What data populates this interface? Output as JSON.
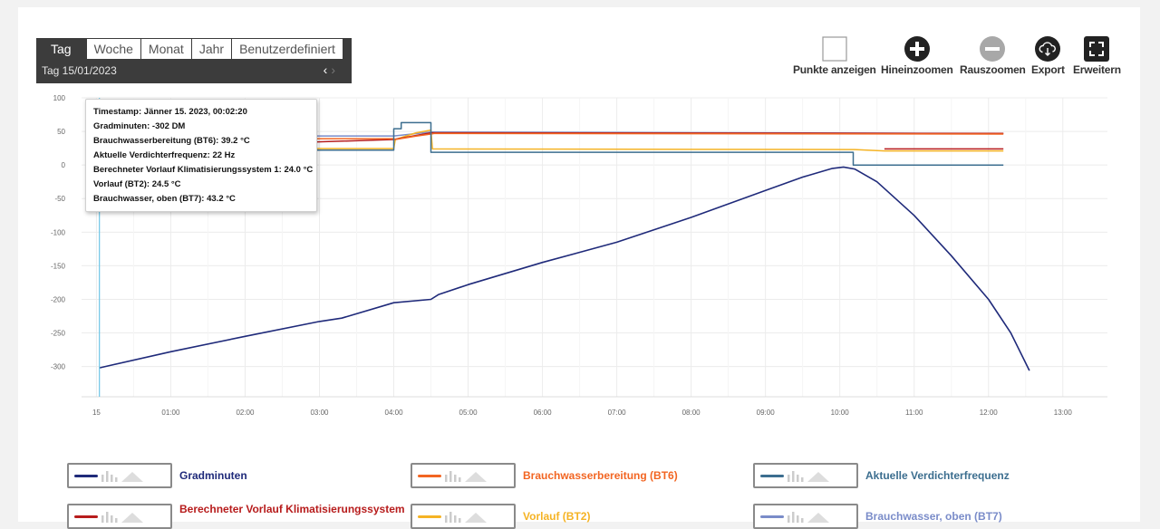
{
  "period_tabs": [
    {
      "label": "Tag",
      "active": true
    },
    {
      "label": "Woche",
      "active": false
    },
    {
      "label": "Monat",
      "active": false
    },
    {
      "label": "Jahr",
      "active": false
    },
    {
      "label": "Benutzerdefiniert",
      "active": false
    }
  ],
  "date_row": {
    "text": "Tag  15/01/2023",
    "prev": "‹",
    "next": "›"
  },
  "toolbar": {
    "points": "Punkte anzeigen",
    "zoom_in": "Hineinzoomen",
    "zoom_out": "Rauszoomen",
    "export": "Export",
    "expand": "Erweitern"
  },
  "tooltip": {
    "header": "Timestamp: Jänner 15. 2023, 00:02:20",
    "lines": [
      "Gradminuten: -302 DM",
      "Brauchwasserbereitung (BT6): 39.2 °C",
      "Aktuelle Verdichterfrequenz: 22 Hz",
      "Berechneter Vorlauf Klimatisierungssystem 1: 24.0 °C",
      "Vorlauf (BT2): 24.5 °C",
      "Brauchwasser, oben (BT7): 43.2 °C"
    ]
  },
  "chart_data": {
    "type": "line",
    "x_ticks": [
      "15",
      "01:00",
      "02:00",
      "03:00",
      "04:00",
      "05:00",
      "06:00",
      "07:00",
      "08:00",
      "09:00",
      "10:00",
      "11:00",
      "12:00",
      "13:00"
    ],
    "y_ticks": [
      100,
      50,
      0,
      -50,
      -100,
      -150,
      -200,
      -250,
      -300
    ],
    "ylim": [
      -345,
      100
    ],
    "xlim_hours": [
      -0.2,
      13.6
    ],
    "grid": true,
    "cursor_hour": 0.04,
    "series": [
      {
        "name": "Gradminuten",
        "color": "#1f2a7a",
        "x": [
          0.04,
          1.0,
          2.0,
          3.0,
          3.3,
          4.0,
          4.5,
          4.6,
          5.0,
          6.0,
          7.0,
          8.0,
          9.0,
          9.5,
          9.9,
          10.05,
          10.2,
          10.5,
          11.0,
          11.5,
          12.0,
          12.3,
          12.55
        ],
        "y": [
          -302,
          -278,
          -255,
          -233,
          -228,
          -205,
          -200,
          -193,
          -178,
          -145,
          -115,
          -78,
          -38,
          -18,
          -5,
          -3,
          -6,
          -25,
          -75,
          -135,
          -200,
          -250,
          -306
        ]
      },
      {
        "name": "Brauchwasserbereitung (BT6)",
        "color": "#f26522",
        "x": [
          0.04,
          4.0,
          4.02,
          4.3,
          4.5,
          4.55,
          12.2
        ],
        "y": [
          39.2,
          39.2,
          38,
          43,
          46,
          47,
          46
        ]
      },
      {
        "name": "Aktuelle Verdichterfrequenz",
        "color": "#3c6e8f",
        "x": [
          0.04,
          4.0,
          4.0,
          4.1,
          4.1,
          4.5,
          4.5,
          10.18,
          10.18,
          12.2
        ],
        "y": [
          22,
          22,
          54,
          54,
          63,
          63,
          19,
          19,
          0,
          0
        ]
      },
      {
        "name": "Berechneter Vorlauf Klimatisierungssystem 1",
        "color": "#b71c1c",
        "x": [
          0.04,
          4.0,
          4.5,
          12.2
        ],
        "y": [
          24.0,
          38,
          48,
          47
        ],
        "x2": [
          10.6,
          12.2
        ],
        "y2": [
          24,
          24
        ]
      },
      {
        "name": "Vorlauf (BT2)",
        "color": "#f5b324",
        "x": [
          0.04,
          4.0,
          4.02,
          4.3,
          4.5,
          4.52,
          10.2,
          10.6,
          12.2
        ],
        "y": [
          24.5,
          24.5,
          38,
          48,
          52,
          24,
          23,
          21,
          21
        ]
      },
      {
        "name": "Brauchwasser, oben (BT7)",
        "color": "#7a8cc9",
        "x": [
          0.04,
          4.0,
          4.5,
          12.2
        ],
        "y": [
          43.2,
          43.2,
          49,
          47
        ]
      }
    ]
  },
  "legend": [
    {
      "label": "Gradminuten",
      "color": "#1f2a7a"
    },
    {
      "label": "Brauchwasserbereitung (BT6)",
      "color": "#f26522"
    },
    {
      "label": "Aktuelle Verdichterfrequenz",
      "color": "#3c6e8f"
    },
    {
      "label": "Berechneter Vorlauf Klimatisierungssystem",
      "color": "#b71c1c"
    },
    {
      "label": "Vorlauf (BT2)",
      "color": "#f5b324"
    },
    {
      "label": "Brauchwasser, oben (BT7)",
      "color": "#7a8cc9"
    }
  ]
}
